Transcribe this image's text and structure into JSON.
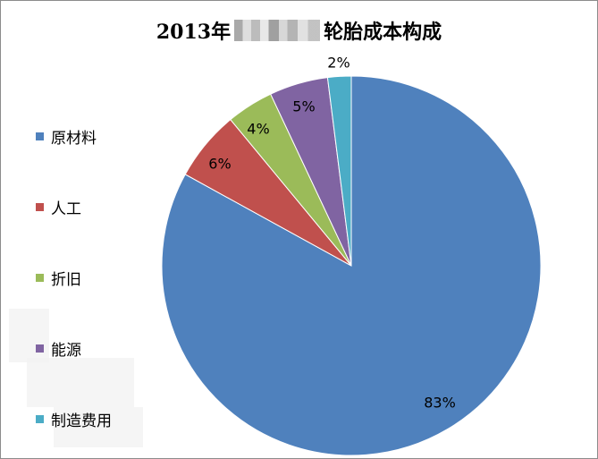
{
  "chart_data": {
    "type": "pie",
    "title_prefix": "2013年",
    "title_suffix": "轮胎成本构成",
    "categories": [
      "原材料",
      "人工",
      "折旧",
      "能源",
      "制造费用"
    ],
    "values": [
      83,
      6,
      4,
      5,
      2
    ],
    "data_labels": [
      "83%",
      "6%",
      "4%",
      "5%",
      "2%"
    ],
    "colors": [
      "#4f81bd",
      "#c0504d",
      "#9bbb59",
      "#8064a2",
      "#4bacc6"
    ],
    "legend_position": "left",
    "start_angle_deg": 0,
    "direction": "clockwise"
  }
}
